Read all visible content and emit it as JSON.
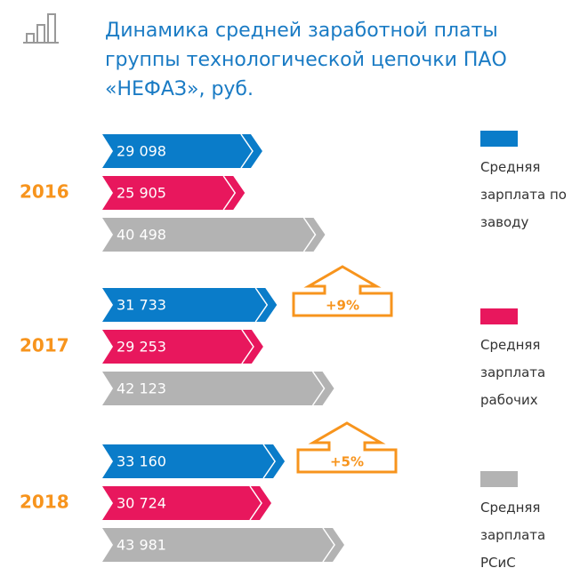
{
  "chart_data": {
    "type": "bar",
    "title": "Динамика средней заработной платы группы технологической цепочки ПАО «НЕФАЗ», руб.",
    "categories": [
      "2016",
      "2017",
      "2018"
    ],
    "series": [
      {
        "name": "Средняя зарплата по заводу",
        "color": "#0a7cc9",
        "values": [
          29098,
          31733,
          33160
        ],
        "value_labels": [
          "29 098",
          "31 733",
          "33 160"
        ]
      },
      {
        "name": "Средняя зарплата рабочих",
        "color": "#e8175d",
        "values": [
          25905,
          29253,
          30724
        ],
        "value_labels": [
          "25 905",
          "29 253",
          "30 724"
        ]
      },
      {
        "name": "Средняя зарплата РСиС",
        "color": "#b3b3b3",
        "values": [
          40498,
          42123,
          43981
        ],
        "value_labels": [
          "40 498",
          "42 123",
          "43 981"
        ]
      }
    ],
    "annotations": [
      "+9%",
      "+5%"
    ],
    "accent_color": "#f7941d"
  }
}
